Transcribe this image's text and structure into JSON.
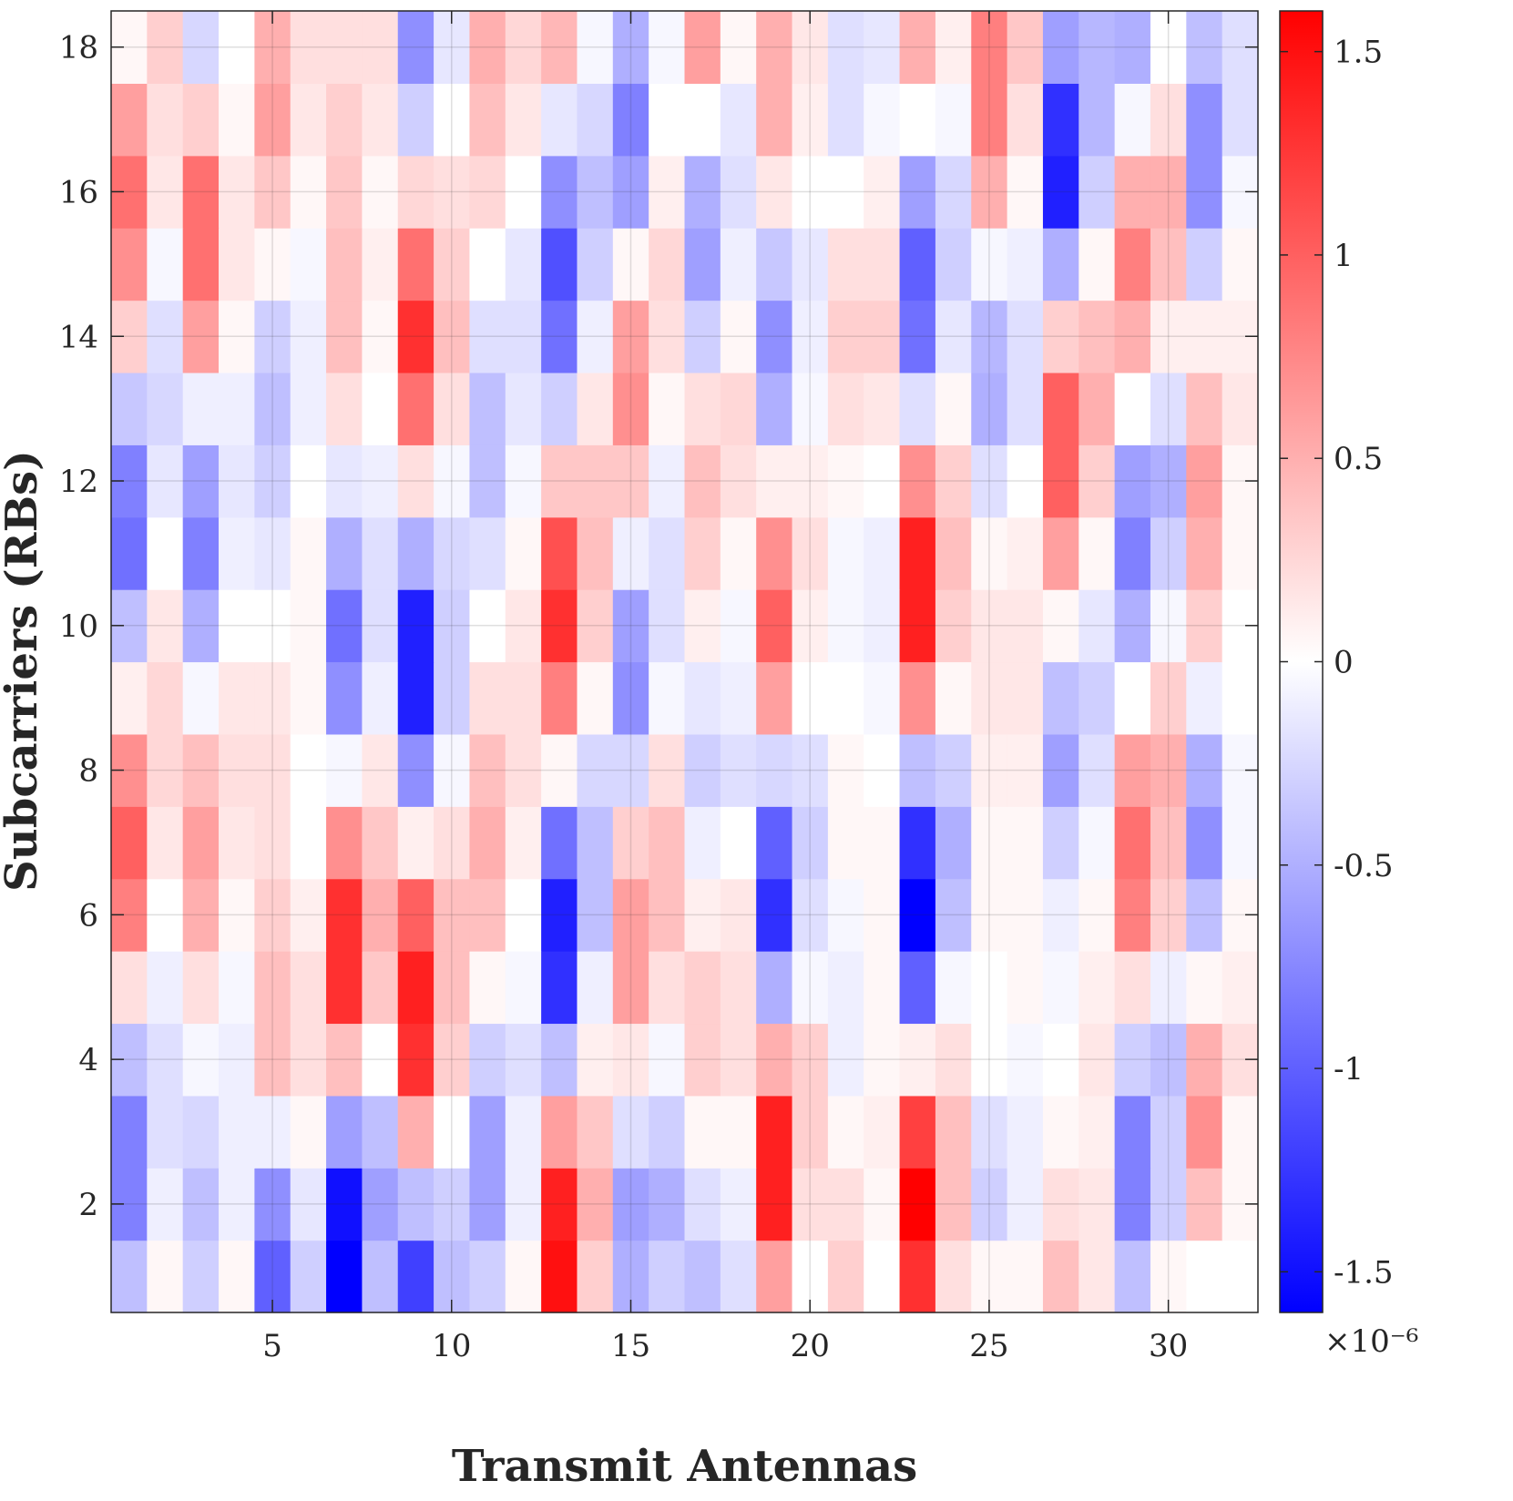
{
  "chart_data": {
    "type": "heatmap",
    "title": "",
    "xlabel": "Transmit Antennas",
    "ylabel": "Subcarriers (RBs)",
    "x_range": [
      1,
      32
    ],
    "y_range": [
      1,
      18
    ],
    "xlim": [
      0.5,
      32.5
    ],
    "ylim": [
      0.5,
      18.5
    ],
    "x_ticks": [
      5,
      10,
      15,
      20,
      25,
      30
    ],
    "y_ticks": [
      2,
      4,
      6,
      8,
      10,
      12,
      14,
      16,
      18
    ],
    "x_tick_labels": [
      "5",
      "10",
      "15",
      "20",
      "25",
      "30"
    ],
    "y_tick_labels": [
      "2",
      "4",
      "6",
      "8",
      "10",
      "12",
      "14",
      "16",
      "18"
    ],
    "colorbar": {
      "min": -1.6,
      "max": 1.6,
      "ticks": [
        -1.5,
        -1,
        -0.5,
        0,
        0.5,
        1,
        1.5
      ],
      "tick_labels": [
        "-1.5",
        "-1",
        "-0.5",
        "0",
        "0.5",
        "1",
        "1.5"
      ],
      "exponent_label": "×10⁻⁶",
      "colormap": [
        "#0000ff",
        "#ffffff",
        "#ff0000"
      ]
    },
    "grid": true,
    "value_scale": "1e-6",
    "values_row_index_note": "rows[0] is subcarrier 1 (bottom), rows[17] is subcarrier 18 (top); columns are antennas 1..32",
    "values": [
      [
        -0.4,
        0.05,
        -0.3,
        0.05,
        -1.0,
        -0.3,
        -1.6,
        -0.4,
        -1.2,
        -0.4,
        -0.3,
        0.05,
        1.5,
        0.3,
        -0.5,
        -0.3,
        -0.4,
        -0.2,
        0.6,
        0.0,
        0.3,
        0.0,
        1.3,
        0.2,
        0.05,
        0.05,
        0.4,
        0.15,
        -0.4,
        0.05,
        0.0,
        0.0
      ],
      [
        -0.8,
        -0.1,
        -0.4,
        -0.1,
        -0.7,
        -0.15,
        -1.5,
        -0.6,
        -0.4,
        -0.3,
        -0.6,
        -0.1,
        1.4,
        0.5,
        -0.6,
        -0.5,
        -0.2,
        -0.1,
        1.4,
        0.2,
        0.2,
        0.05,
        1.6,
        0.4,
        -0.3,
        -0.1,
        0.2,
        0.15,
        -0.8,
        -0.3,
        0.4,
        0.05
      ],
      [
        -0.8,
        -0.2,
        -0.25,
        -0.1,
        -0.1,
        0.05,
        -0.6,
        -0.4,
        0.5,
        0.0,
        -0.6,
        -0.1,
        0.6,
        0.35,
        -0.2,
        -0.3,
        0.05,
        0.05,
        1.4,
        0.3,
        0.05,
        0.1,
        1.2,
        0.4,
        -0.2,
        -0.1,
        0.05,
        0.1,
        -0.8,
        -0.3,
        0.7,
        0.05
      ],
      [
        -0.4,
        -0.2,
        -0.05,
        -0.1,
        0.4,
        0.2,
        0.4,
        0.0,
        1.3,
        0.3,
        -0.3,
        -0.2,
        -0.4,
        0.1,
        0.15,
        -0.05,
        0.3,
        0.2,
        0.5,
        0.3,
        -0.1,
        0.05,
        0.1,
        0.2,
        0.0,
        -0.05,
        0.0,
        0.15,
        -0.3,
        -0.4,
        0.5,
        0.2
      ],
      [
        0.2,
        -0.1,
        0.2,
        -0.05,
        0.4,
        0.2,
        1.3,
        0.35,
        1.4,
        0.4,
        0.05,
        -0.05,
        -1.3,
        -0.1,
        0.6,
        0.2,
        0.3,
        0.2,
        -0.5,
        -0.05,
        -0.1,
        0.05,
        -1.0,
        -0.05,
        0.0,
        0.05,
        -0.05,
        0.1,
        0.2,
        -0.1,
        0.05,
        0.1
      ],
      [
        0.8,
        0.0,
        0.5,
        0.05,
        0.3,
        0.1,
        1.3,
        0.5,
        1.0,
        0.4,
        0.4,
        0.0,
        -1.4,
        -0.4,
        0.6,
        0.4,
        0.1,
        0.15,
        -1.3,
        -0.2,
        -0.05,
        0.05,
        -1.6,
        -0.4,
        0.05,
        0.05,
        -0.1,
        0.05,
        0.8,
        0.3,
        -0.4,
        0.05
      ],
      [
        1.0,
        0.15,
        0.6,
        0.15,
        0.2,
        0.0,
        0.7,
        0.35,
        0.1,
        0.2,
        0.5,
        0.1,
        -0.9,
        -0.4,
        0.3,
        0.4,
        -0.1,
        0.0,
        -1.0,
        -0.3,
        0.05,
        0.05,
        -1.3,
        -0.5,
        0.05,
        0.05,
        -0.3,
        -0.05,
        0.9,
        0.4,
        -0.7,
        -0.05
      ],
      [
        0.7,
        0.25,
        0.4,
        0.2,
        0.2,
        0.0,
        -0.05,
        0.15,
        -0.7,
        -0.05,
        0.4,
        0.2,
        0.05,
        -0.25,
        -0.25,
        0.2,
        -0.3,
        -0.2,
        -0.25,
        -0.2,
        0.05,
        0.0,
        -0.4,
        -0.3,
        0.1,
        0.1,
        -0.6,
        -0.2,
        0.6,
        0.5,
        -0.5,
        -0.05
      ],
      [
        0.1,
        0.25,
        -0.05,
        0.15,
        0.15,
        0.05,
        -0.7,
        -0.1,
        -1.4,
        -0.3,
        0.2,
        0.2,
        0.8,
        0.05,
        -0.7,
        -0.05,
        -0.15,
        -0.1,
        0.6,
        0.0,
        0.0,
        -0.05,
        0.7,
        0.05,
        0.15,
        0.15,
        -0.4,
        -0.3,
        0.0,
        0.3,
        -0.1,
        0.0
      ],
      [
        -0.4,
        0.15,
        -0.5,
        0.0,
        0.0,
        0.05,
        -0.9,
        -0.2,
        -1.4,
        -0.3,
        0.0,
        0.15,
        1.3,
        0.3,
        -0.6,
        -0.2,
        0.1,
        -0.05,
        1.0,
        0.1,
        -0.05,
        -0.1,
        1.4,
        0.3,
        0.15,
        0.15,
        0.05,
        -0.15,
        -0.5,
        -0.05,
        0.3,
        0.0
      ],
      [
        -0.9,
        0.0,
        -0.8,
        -0.1,
        -0.15,
        0.05,
        -0.5,
        -0.2,
        -0.5,
        -0.25,
        -0.2,
        0.05,
        1.1,
        0.4,
        -0.1,
        -0.2,
        0.3,
        0.05,
        0.7,
        0.2,
        -0.05,
        -0.1,
        1.4,
        0.4,
        0.05,
        0.1,
        0.6,
        0.05,
        -0.8,
        -0.3,
        0.5,
        0.05
      ],
      [
        -0.8,
        -0.15,
        -0.6,
        -0.15,
        -0.3,
        0.0,
        -0.15,
        -0.1,
        0.2,
        -0.05,
        -0.4,
        -0.05,
        0.35,
        0.35,
        0.35,
        -0.1,
        0.4,
        0.2,
        0.1,
        0.1,
        0.05,
        0.0,
        0.7,
        0.3,
        -0.2,
        0.0,
        1.0,
        0.3,
        -0.6,
        -0.5,
        0.6,
        0.05
      ],
      [
        -0.35,
        -0.25,
        -0.1,
        -0.1,
        -0.4,
        -0.1,
        0.2,
        0.0,
        0.9,
        0.2,
        -0.4,
        -0.15,
        -0.3,
        0.15,
        0.7,
        0.05,
        0.2,
        0.25,
        -0.5,
        -0.05,
        0.2,
        0.15,
        -0.2,
        0.05,
        -0.5,
        -0.2,
        1.0,
        0.5,
        0.0,
        -0.2,
        0.4,
        0.15
      ],
      [
        0.3,
        -0.2,
        0.6,
        0.05,
        -0.3,
        -0.1,
        0.4,
        0.05,
        1.3,
        0.4,
        -0.2,
        -0.2,
        -0.9,
        -0.1,
        0.6,
        0.2,
        -0.3,
        0.05,
        -0.7,
        -0.1,
        0.3,
        0.3,
        -0.9,
        -0.15,
        -0.45,
        -0.2,
        0.3,
        0.4,
        0.5,
        0.1,
        0.1,
        0.1
      ],
      [
        0.7,
        -0.05,
        0.9,
        0.15,
        0.05,
        -0.05,
        0.4,
        0.1,
        0.9,
        0.3,
        0.0,
        -0.15,
        -1.1,
        -0.3,
        0.05,
        0.25,
        -0.6,
        -0.1,
        -0.35,
        -0.15,
        0.2,
        0.2,
        -1.0,
        -0.3,
        -0.05,
        -0.1,
        -0.5,
        0.05,
        0.8,
        0.4,
        -0.3,
        0.05
      ],
      [
        0.9,
        0.15,
        0.9,
        0.15,
        0.35,
        0.05,
        0.35,
        0.05,
        0.25,
        0.2,
        0.25,
        0.0,
        -0.7,
        -0.4,
        -0.6,
        0.1,
        -0.5,
        -0.2,
        0.15,
        0.0,
        0.0,
        0.1,
        -0.6,
        -0.25,
        0.5,
        0.05,
        -1.4,
        -0.3,
        0.5,
        0.5,
        -0.7,
        -0.05
      ],
      [
        0.6,
        0.2,
        0.3,
        0.05,
        0.6,
        0.15,
        0.3,
        0.15,
        -0.3,
        0.0,
        0.4,
        0.15,
        -0.15,
        -0.25,
        -0.8,
        0.0,
        0.0,
        -0.15,
        0.5,
        0.1,
        -0.2,
        -0.05,
        0.0,
        -0.05,
        0.8,
        0.2,
        -1.3,
        -0.45,
        -0.05,
        0.2,
        -0.7,
        -0.2
      ],
      [
        0.05,
        0.3,
        -0.25,
        0.0,
        0.5,
        0.2,
        0.2,
        0.2,
        -0.7,
        -0.15,
        0.5,
        0.25,
        0.45,
        -0.05,
        -0.5,
        -0.05,
        0.6,
        0.05,
        0.5,
        0.15,
        -0.2,
        -0.15,
        0.5,
        0.1,
        0.8,
        0.35,
        -0.6,
        -0.45,
        -0.5,
        0.0,
        -0.4,
        -0.2
      ]
    ]
  }
}
